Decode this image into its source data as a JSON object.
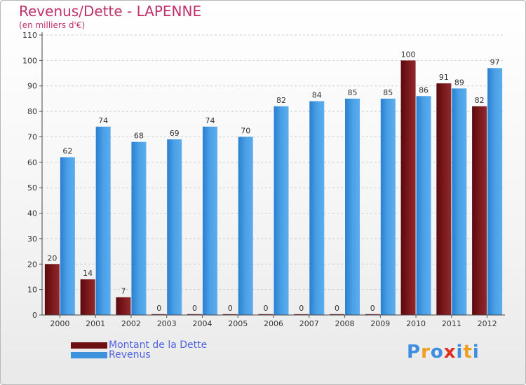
{
  "title": "Revenus/Dette - LAPENNE",
  "subtitle": "(en milliers d'€)",
  "logo": {
    "text": "Proxiti",
    "letters": [
      "P",
      "r",
      "o",
      "x",
      "i",
      "t",
      "i"
    ],
    "colors": [
      "#3d8ee0",
      "#f0a020",
      "#3d8ee0",
      "#e03020",
      "#3d8ee0",
      "#f0a020",
      "#3d8ee0"
    ]
  },
  "legend": [
    {
      "name": "Montant de la Dette",
      "color": "#6e0f12"
    },
    {
      "name": "Revenus",
      "color": "#3d92de"
    }
  ],
  "chart_data": {
    "type": "bar",
    "title": "Revenus/Dette - LAPENNE",
    "subtitle": "(en milliers d'€)",
    "categories": [
      "2000",
      "2001",
      "2002",
      "2003",
      "2004",
      "2005",
      "2006",
      "2007",
      "2008",
      "2009",
      "2010",
      "2011",
      "2012"
    ],
    "series": [
      {
        "name": "Montant de la Dette",
        "color": "#7a1519",
        "values": [
          20,
          14,
          7,
          0,
          0,
          0,
          0,
          0,
          0,
          0,
          100,
          91,
          82
        ]
      },
      {
        "name": "Revenus",
        "color": "#3d92de",
        "values": [
          62,
          74,
          68,
          69,
          74,
          70,
          82,
          84,
          85,
          85,
          86,
          89,
          97
        ]
      }
    ],
    "ylim": [
      0,
      110
    ],
    "yticks": [
      0,
      10,
      20,
      30,
      40,
      50,
      60,
      70,
      80,
      90,
      100,
      110
    ],
    "grid": true,
    "legend_position": "bottom-left"
  }
}
